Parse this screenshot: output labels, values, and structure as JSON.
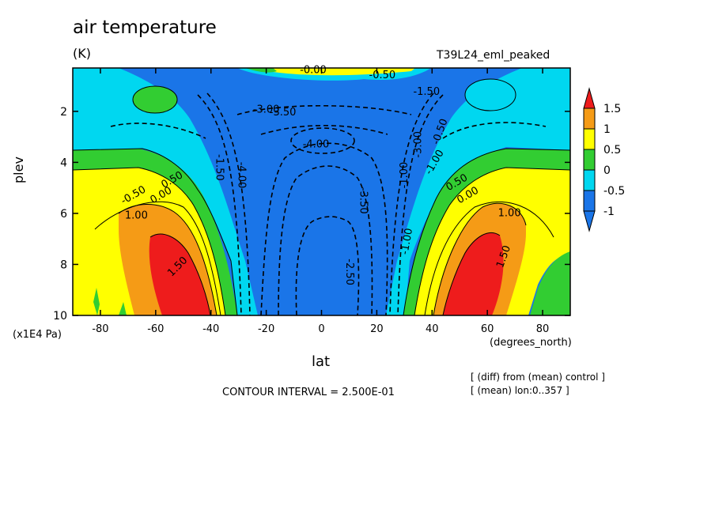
{
  "colors": {
    "red": "#ee1c1c",
    "orange": "#f59b16",
    "yellow": "#ffff00",
    "green": "#32cd32",
    "cyan": "#00d7f0",
    "blue": "#1a75e8",
    "line": "#000000"
  },
  "chart_data": {
    "type": "heatmap",
    "title": "air temperature",
    "units": "(K)",
    "experiment": "T39L24_eml_peaked",
    "xlabel": "lat",
    "xunits": "(degrees_north)",
    "ylabel": "plev",
    "yunits": "(x1E4 Pa)",
    "xlim": [
      -90,
      90
    ],
    "ylim": [
      10,
      0.3
    ],
    "x_ticks": [
      "-80",
      "-60",
      "-40",
      "-20",
      "0",
      "20",
      "40",
      "60",
      "80"
    ],
    "y_ticks": [
      "2",
      "4",
      "6",
      "8",
      "10"
    ],
    "colorbar": {
      "levels": [
        "1.5",
        "1",
        "0.5",
        "0",
        "-0.5",
        "-1"
      ],
      "bins": [
        "red",
        "orange",
        "yellow",
        "green",
        "cyan",
        "blue"
      ]
    },
    "contour_labels": [
      "-0.00",
      "-3.00",
      "-3.50",
      "-4.00",
      "-3.50",
      "-2.50",
      "-1.50",
      "-0.50",
      "-1.00",
      "-1.50",
      "0.50",
      "0.00",
      "-0.50",
      "1.00",
      "1.50",
      "-4.00",
      "-3.00",
      "-1.00",
      "0.50",
      "0.00",
      "1.00",
      "1.50",
      "-1.00",
      "-0.50"
    ],
    "contour_interval": "CONTOUR INTERVAL = 2.500E-01",
    "notes": [
      "[ (diff) from (mean) control ]",
      "[ (mean) lon:0..357 ]"
    ]
  }
}
